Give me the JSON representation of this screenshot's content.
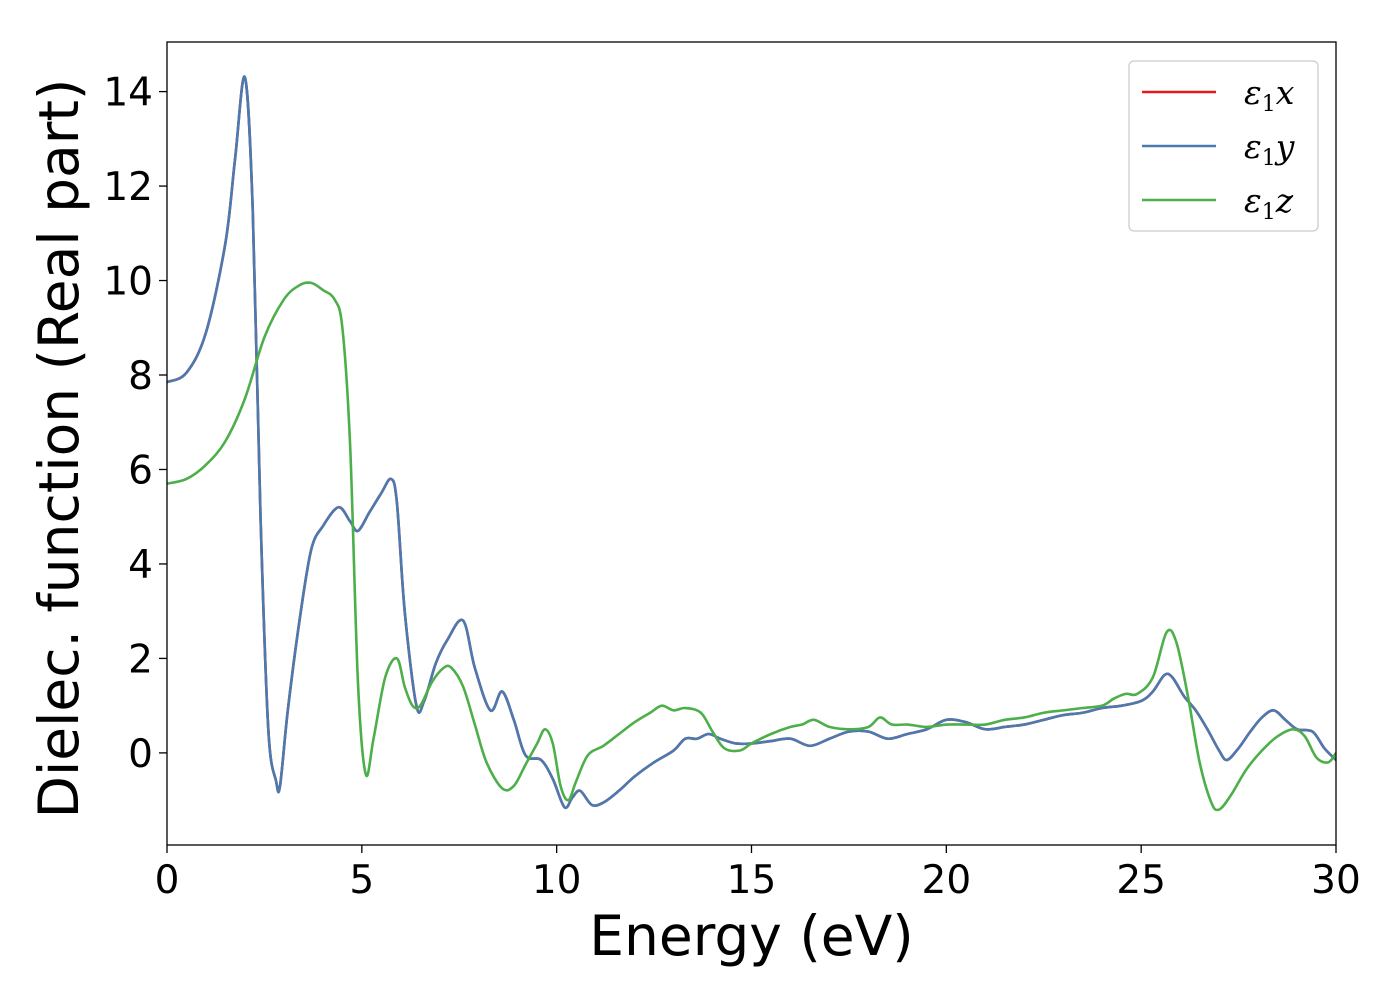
{
  "chart_data": {
    "type": "line",
    "title": "",
    "xlabel": "Energy (eV)",
    "ylabel": "Dielec. function (Real part)",
    "xlim": [
      0,
      30
    ],
    "ylim": [
      -1.95,
      15.05
    ],
    "xticks": [
      0,
      5,
      10,
      15,
      20,
      25,
      30
    ],
    "yticks": [
      0,
      2,
      4,
      6,
      8,
      10,
      12,
      14
    ],
    "grid": false,
    "legend_position": "top-right",
    "series": [
      {
        "name": "ε1x",
        "legend_symbol": "ε",
        "legend_sub": "1",
        "legend_var": "x",
        "color": "#e41a1c",
        "x": [
          0,
          0.5,
          1,
          1.5,
          1.75,
          2,
          2.2,
          2.4,
          2.6,
          2.8,
          2.9,
          3.1,
          3.4,
          3.7,
          4.0,
          4.4,
          4.7,
          4.9,
          5.2,
          5.5,
          5.75,
          5.9,
          6.1,
          6.4,
          6.6,
          6.9,
          7.2,
          7.6,
          7.9,
          8.3,
          8.6,
          8.9,
          9.2,
          9.6,
          9.9,
          10.2,
          10.4,
          10.6,
          10.9,
          11.2,
          11.6,
          12.0,
          12.5,
          13.0,
          13.3,
          13.6,
          13.9,
          14.2,
          14.6,
          15.0,
          15.5,
          16.0,
          16.5,
          17.0,
          17.5,
          18.0,
          18.5,
          19.0,
          19.5,
          20.0,
          20.5,
          21.0,
          21.5,
          22.0,
          22.5,
          23.0,
          23.5,
          24.0,
          24.5,
          25.0,
          25.3,
          25.6,
          25.8,
          26.1,
          26.4,
          26.7,
          27.0,
          27.2,
          27.5,
          27.8,
          28.1,
          28.4,
          28.7,
          29.0,
          29.4,
          29.7,
          30.0
        ],
        "y": [
          7.85,
          8.05,
          8.9,
          10.8,
          12.6,
          14.3,
          11.5,
          5.0,
          0.5,
          -0.6,
          -0.7,
          0.9,
          2.8,
          4.3,
          4.8,
          5.2,
          4.9,
          4.7,
          5.1,
          5.5,
          5.8,
          5.3,
          3.0,
          1.0,
          1.1,
          1.9,
          2.4,
          2.8,
          1.8,
          0.9,
          1.3,
          0.7,
          -0.05,
          -0.15,
          -0.55,
          -1.15,
          -0.95,
          -0.8,
          -1.1,
          -1.05,
          -0.8,
          -0.5,
          -0.2,
          0.05,
          0.3,
          0.3,
          0.4,
          0.3,
          0.2,
          0.2,
          0.25,
          0.3,
          0.15,
          0.3,
          0.45,
          0.45,
          0.3,
          0.4,
          0.5,
          0.7,
          0.65,
          0.5,
          0.55,
          0.6,
          0.7,
          0.8,
          0.85,
          0.95,
          1.0,
          1.1,
          1.3,
          1.65,
          1.6,
          1.2,
          0.9,
          0.5,
          0.05,
          -0.15,
          0.1,
          0.45,
          0.75,
          0.9,
          0.7,
          0.5,
          0.45,
          0.1,
          -0.15
        ]
      },
      {
        "name": "ε1y",
        "legend_symbol": "ε",
        "legend_sub": "1",
        "legend_var": "y",
        "color": "#4a7ab0",
        "x": [
          0,
          0.5,
          1,
          1.5,
          1.75,
          2,
          2.2,
          2.4,
          2.6,
          2.8,
          2.9,
          3.1,
          3.4,
          3.7,
          4.0,
          4.4,
          4.7,
          4.9,
          5.2,
          5.5,
          5.75,
          5.9,
          6.1,
          6.4,
          6.6,
          6.9,
          7.2,
          7.6,
          7.9,
          8.3,
          8.6,
          8.9,
          9.2,
          9.6,
          9.9,
          10.2,
          10.4,
          10.6,
          10.9,
          11.2,
          11.6,
          12.0,
          12.5,
          13.0,
          13.3,
          13.6,
          13.9,
          14.2,
          14.6,
          15.0,
          15.5,
          16.0,
          16.5,
          17.0,
          17.5,
          18.0,
          18.5,
          19.0,
          19.5,
          20.0,
          20.5,
          21.0,
          21.5,
          22.0,
          22.5,
          23.0,
          23.5,
          24.0,
          24.5,
          25.0,
          25.3,
          25.6,
          25.8,
          26.1,
          26.4,
          26.7,
          27.0,
          27.2,
          27.5,
          27.8,
          28.1,
          28.4,
          28.7,
          29.0,
          29.4,
          29.7,
          30.0
        ],
        "y": [
          7.85,
          8.05,
          8.9,
          10.8,
          12.6,
          14.3,
          11.5,
          5.0,
          0.5,
          -0.6,
          -0.7,
          0.9,
          2.8,
          4.3,
          4.8,
          5.2,
          4.9,
          4.7,
          5.1,
          5.5,
          5.8,
          5.3,
          3.0,
          1.0,
          1.1,
          1.9,
          2.4,
          2.8,
          1.8,
          0.9,
          1.3,
          0.7,
          -0.05,
          -0.15,
          -0.55,
          -1.15,
          -0.95,
          -0.8,
          -1.1,
          -1.05,
          -0.8,
          -0.5,
          -0.2,
          0.05,
          0.3,
          0.3,
          0.4,
          0.3,
          0.2,
          0.2,
          0.25,
          0.3,
          0.15,
          0.3,
          0.45,
          0.45,
          0.3,
          0.4,
          0.5,
          0.7,
          0.65,
          0.5,
          0.55,
          0.6,
          0.7,
          0.8,
          0.85,
          0.95,
          1.0,
          1.1,
          1.3,
          1.65,
          1.6,
          1.2,
          0.9,
          0.5,
          0.05,
          -0.15,
          0.1,
          0.45,
          0.75,
          0.9,
          0.7,
          0.5,
          0.45,
          0.1,
          -0.15
        ]
      },
      {
        "name": "ε1z",
        "legend_symbol": "ε",
        "legend_sub": "1",
        "legend_var": "z",
        "color": "#4daf4a",
        "x": [
          0,
          0.5,
          1,
          1.5,
          2,
          2.5,
          3,
          3.4,
          3.7,
          4.0,
          4.3,
          4.5,
          4.7,
          4.9,
          5.1,
          5.3,
          5.6,
          5.9,
          6.1,
          6.3,
          6.5,
          6.8,
          7.1,
          7.3,
          7.6,
          7.9,
          8.2,
          8.6,
          8.9,
          9.2,
          9.5,
          9.7,
          9.9,
          10.1,
          10.3,
          10.5,
          10.8,
          11.2,
          11.6,
          12.0,
          12.4,
          12.7,
          13.0,
          13.3,
          13.7,
          14.0,
          14.3,
          14.7,
          15.0,
          15.5,
          16.0,
          16.3,
          16.6,
          17.0,
          17.5,
          18.0,
          18.3,
          18.6,
          19.0,
          19.5,
          20.0,
          20.5,
          21.0,
          21.5,
          22.0,
          22.5,
          23.0,
          23.5,
          24.0,
          24.3,
          24.6,
          24.9,
          25.3,
          25.65,
          25.9,
          26.2,
          26.5,
          26.8,
          27.0,
          27.3,
          27.7,
          28.1,
          28.5,
          28.9,
          29.2,
          29.5,
          29.8,
          30.0
        ],
        "y": [
          5.7,
          5.8,
          6.1,
          6.6,
          7.5,
          8.8,
          9.6,
          9.9,
          9.95,
          9.8,
          9.6,
          9.0,
          6.5,
          1.5,
          -0.45,
          0.3,
          1.6,
          2.0,
          1.4,
          1.0,
          1.0,
          1.5,
          1.8,
          1.8,
          1.4,
          0.6,
          -0.2,
          -0.75,
          -0.7,
          -0.25,
          0.2,
          0.5,
          0.2,
          -0.7,
          -1.0,
          -0.6,
          -0.05,
          0.15,
          0.4,
          0.65,
          0.85,
          1.0,
          0.9,
          0.95,
          0.85,
          0.45,
          0.1,
          0.05,
          0.2,
          0.4,
          0.55,
          0.6,
          0.7,
          0.55,
          0.5,
          0.55,
          0.75,
          0.6,
          0.6,
          0.55,
          0.6,
          0.6,
          0.6,
          0.7,
          0.75,
          0.85,
          0.9,
          0.95,
          1.0,
          1.15,
          1.25,
          1.25,
          1.6,
          2.55,
          2.35,
          1.2,
          -0.2,
          -1.05,
          -1.2,
          -0.9,
          -0.35,
          0.05,
          0.35,
          0.5,
          0.35,
          -0.1,
          -0.2,
          0.0
        ]
      }
    ]
  }
}
